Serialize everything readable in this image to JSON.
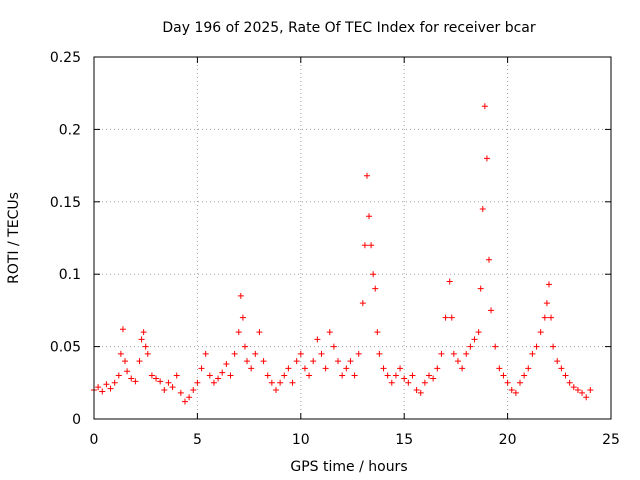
{
  "chart_data": {
    "type": "scatter",
    "title": "Day 196 of 2025, Rate Of TEC Index for receiver bcar",
    "xlabel": "GPS time / hours",
    "ylabel": "ROTI / TECUs",
    "xlim": [
      0,
      25
    ],
    "ylim": [
      0,
      0.25
    ],
    "xticks": [
      "0",
      "5",
      "10",
      "15",
      "20",
      "25"
    ],
    "yticks": [
      "0",
      "0.05",
      "0.1",
      "0.15",
      "0.2",
      "0.25"
    ],
    "grid": true,
    "marker": "plus",
    "color": "#ff0000",
    "series": [
      {
        "x": [
          0.0,
          0.2,
          0.4,
          0.6,
          0.8,
          1.0,
          1.2,
          1.3,
          1.4,
          1.5,
          1.6,
          1.8,
          2.0,
          2.2,
          2.3,
          2.4,
          2.5,
          2.6,
          2.8,
          3.0,
          3.2,
          3.4,
          3.6,
          3.8,
          4.0,
          4.2,
          4.4,
          4.6,
          4.8,
          5.0,
          5.2,
          5.4,
          5.6,
          5.8,
          6.0,
          6.2,
          6.4,
          6.6,
          6.8,
          7.0,
          7.1,
          7.2,
          7.3,
          7.4,
          7.6,
          7.8,
          8.0,
          8.2,
          8.4,
          8.6,
          8.8,
          9.0,
          9.2,
          9.4,
          9.6,
          9.8,
          10.0,
          10.2,
          10.4,
          10.6,
          10.8,
          11.0,
          11.2,
          11.4,
          11.6,
          11.8,
          12.0,
          12.2,
          12.4,
          12.6,
          12.8,
          13.0,
          13.1,
          13.2,
          13.3,
          13.4,
          13.5,
          13.6,
          13.7,
          13.8,
          14.0,
          14.2,
          14.4,
          14.6,
          14.8,
          15.0,
          15.2,
          15.4,
          15.6,
          15.8,
          16.0,
          16.2,
          16.4,
          16.6,
          16.8,
          17.0,
          17.2,
          17.3,
          17.4,
          17.6,
          17.8,
          18.0,
          18.2,
          18.4,
          18.6,
          18.7,
          18.8,
          18.9,
          19.0,
          19.1,
          19.2,
          19.4,
          19.6,
          19.8,
          20.0,
          20.2,
          20.4,
          20.6,
          20.8,
          21.0,
          21.2,
          21.4,
          21.6,
          21.8,
          21.9,
          22.0,
          22.1,
          22.2,
          22.4,
          22.6,
          22.8,
          23.0,
          23.2,
          23.4,
          23.6,
          23.8,
          24.0
        ],
        "y": [
          0.02,
          0.022,
          0.019,
          0.024,
          0.021,
          0.025,
          0.03,
          0.045,
          0.062,
          0.04,
          0.033,
          0.028,
          0.026,
          0.04,
          0.055,
          0.06,
          0.05,
          0.045,
          0.03,
          0.028,
          0.026,
          0.02,
          0.025,
          0.022,
          0.03,
          0.018,
          0.012,
          0.015,
          0.02,
          0.025,
          0.035,
          0.045,
          0.03,
          0.025,
          0.028,
          0.032,
          0.038,
          0.03,
          0.045,
          0.06,
          0.085,
          0.07,
          0.05,
          0.04,
          0.035,
          0.045,
          0.06,
          0.04,
          0.03,
          0.025,
          0.02,
          0.025,
          0.03,
          0.035,
          0.025,
          0.04,
          0.045,
          0.035,
          0.03,
          0.04,
          0.055,
          0.045,
          0.035,
          0.06,
          0.05,
          0.04,
          0.03,
          0.035,
          0.04,
          0.03,
          0.045,
          0.08,
          0.12,
          0.168,
          0.14,
          0.12,
          0.1,
          0.09,
          0.06,
          0.045,
          0.035,
          0.03,
          0.025,
          0.03,
          0.035,
          0.028,
          0.025,
          0.03,
          0.02,
          0.018,
          0.025,
          0.03,
          0.028,
          0.035,
          0.045,
          0.07,
          0.095,
          0.07,
          0.045,
          0.04,
          0.035,
          0.045,
          0.05,
          0.055,
          0.06,
          0.09,
          0.145,
          0.216,
          0.18,
          0.11,
          0.075,
          0.05,
          0.035,
          0.03,
          0.025,
          0.02,
          0.018,
          0.025,
          0.03,
          0.035,
          0.045,
          0.05,
          0.06,
          0.07,
          0.08,
          0.093,
          0.07,
          0.05,
          0.04,
          0.035,
          0.03,
          0.025,
          0.022,
          0.02,
          0.018,
          0.015,
          0.02
        ]
      }
    ]
  }
}
